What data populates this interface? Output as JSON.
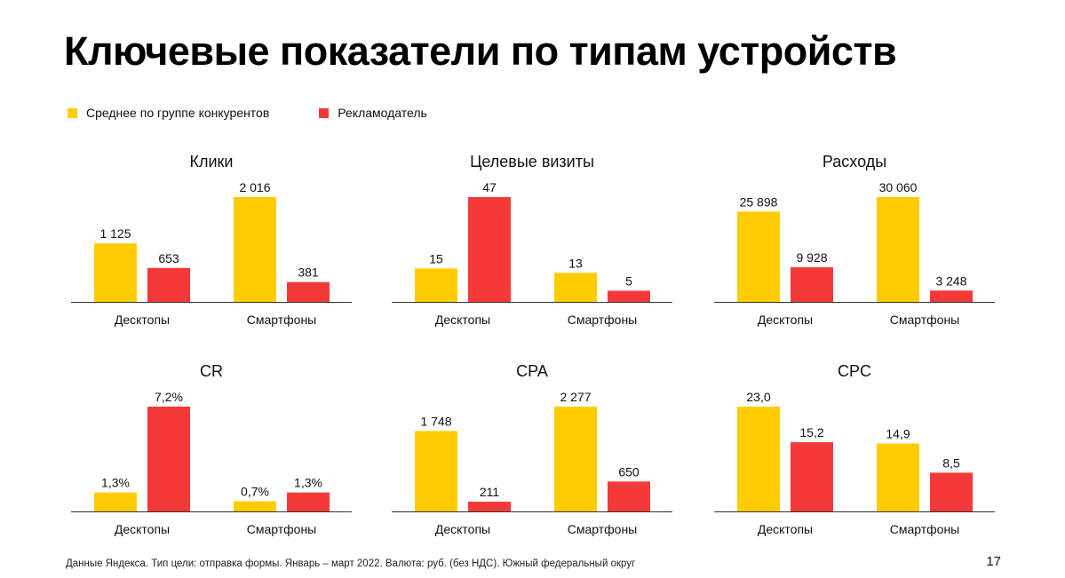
{
  "title": "Ключевые показатели по типам устройств",
  "legend": [
    {
      "label": "Среднее по группе конкурентов",
      "color": "#FFCC00"
    },
    {
      "label": "Рекламодатель",
      "color": "#F33A39"
    }
  ],
  "chart_data": [
    {
      "type": "bar",
      "title": "Клики",
      "categories": [
        "Десктопы",
        "Смартфоны"
      ],
      "series": [
        {
          "name": "Среднее по группе конкурентов",
          "values": [
            1125,
            2016
          ],
          "labels": [
            "1 125",
            "2 016"
          ]
        },
        {
          "name": "Рекламодатель",
          "values": [
            653,
            381
          ],
          "labels": [
            "653",
            "381"
          ]
        }
      ]
    },
    {
      "type": "bar",
      "title": "Целевые визиты",
      "categories": [
        "Десктопы",
        "Смартфоны"
      ],
      "series": [
        {
          "name": "Среднее по группе конкурентов",
          "values": [
            15,
            13
          ],
          "labels": [
            "15",
            "13"
          ]
        },
        {
          "name": "Рекламодатель",
          "values": [
            47,
            5
          ],
          "labels": [
            "47",
            "5"
          ]
        }
      ]
    },
    {
      "type": "bar",
      "title": "Расходы",
      "categories": [
        "Десктопы",
        "Смартфоны"
      ],
      "series": [
        {
          "name": "Среднее по группе конкурентов",
          "values": [
            25898,
            30060
          ],
          "labels": [
            "25 898",
            "30 060"
          ]
        },
        {
          "name": "Рекламодатель",
          "values": [
            9928,
            3248
          ],
          "labels": [
            "9 928",
            "3 248"
          ]
        }
      ]
    },
    {
      "type": "bar",
      "title": "CR",
      "categories": [
        "Десктопы",
        "Смартфоны"
      ],
      "series": [
        {
          "name": "Среднее по группе конкурентов",
          "values": [
            1.3,
            0.7
          ],
          "labels": [
            "1,3%",
            "0,7%"
          ]
        },
        {
          "name": "Рекламодатель",
          "values": [
            7.2,
            1.3
          ],
          "labels": [
            "7,2%",
            "1,3%"
          ]
        }
      ]
    },
    {
      "type": "bar",
      "title": "CPA",
      "categories": [
        "Десктопы",
        "Смартфоны"
      ],
      "series": [
        {
          "name": "Среднее по группе конкурентов",
          "values": [
            1748,
            2277
          ],
          "labels": [
            "1 748",
            "2 277"
          ]
        },
        {
          "name": "Рекламодатель",
          "values": [
            211,
            650
          ],
          "labels": [
            "211",
            "650"
          ]
        }
      ]
    },
    {
      "type": "bar",
      "title": "CPC",
      "categories": [
        "Десктопы",
        "Смартфоны"
      ],
      "series": [
        {
          "name": "Среднее по группе конкурентов",
          "values": [
            23.0,
            14.9
          ],
          "labels": [
            "23,0",
            "14,9"
          ]
        },
        {
          "name": "Рекламодатель",
          "values": [
            15.2,
            8.5
          ],
          "labels": [
            "15,2",
            "8,5"
          ]
        }
      ]
    }
  ],
  "footer": "Данные Яндекса. Тип цели: отправка формы. Январь – март 2022. Валюта: руб. (без НДС). Южный федеральный округ",
  "page_number": "17"
}
